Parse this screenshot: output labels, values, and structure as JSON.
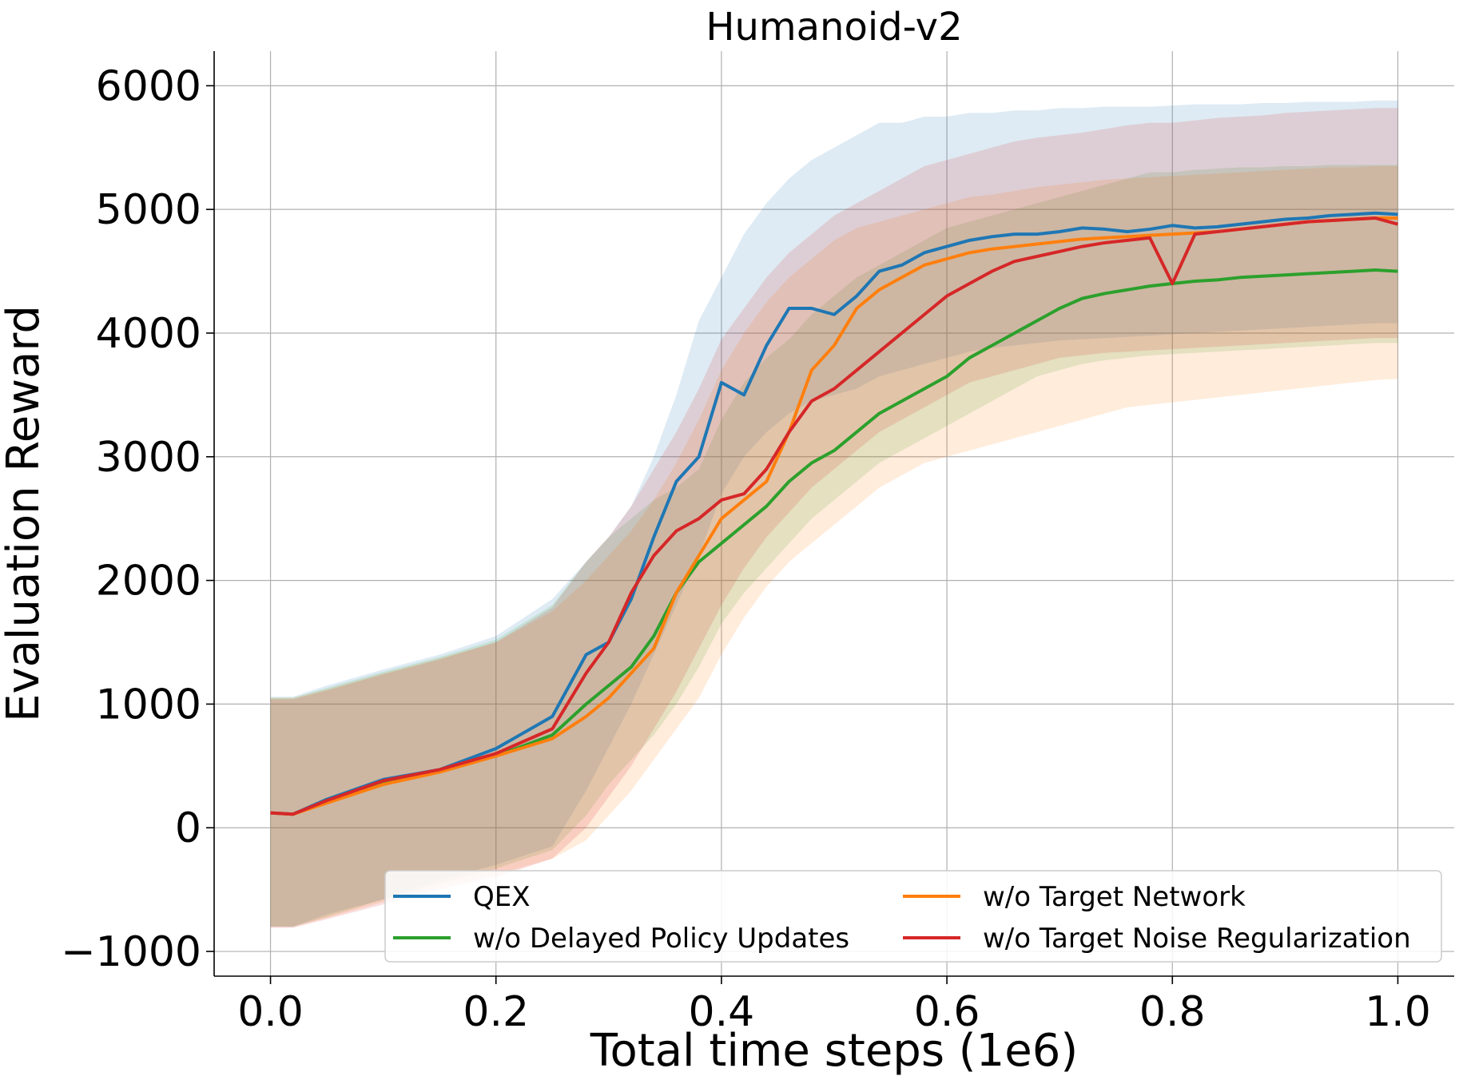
{
  "chart_data": {
    "type": "line",
    "title": "Humanoid-v2",
    "xlabel": "Total time steps (1e6)",
    "ylabel": "Evaluation Reward",
    "xlim": [
      -0.05,
      1.05
    ],
    "ylim": [
      -1200,
      6280
    ],
    "xticks": [
      0.0,
      0.2,
      0.4,
      0.6,
      0.8,
      1.0
    ],
    "xtick_labels": [
      "0.0",
      "0.2",
      "0.4",
      "0.6",
      "0.8",
      "1.0"
    ],
    "yticks": [
      -1000,
      0,
      1000,
      2000,
      3000,
      4000,
      5000,
      6000
    ],
    "ytick_labels": [
      "−1000",
      "0",
      "1000",
      "2000",
      "3000",
      "4000",
      "5000",
      "6000"
    ],
    "grid": true,
    "legend_position": "lower-right",
    "legend_columns": 2,
    "x": [
      0.0,
      0.02,
      0.05,
      0.1,
      0.15,
      0.2,
      0.25,
      0.28,
      0.3,
      0.32,
      0.34,
      0.36,
      0.38,
      0.4,
      0.42,
      0.44,
      0.46,
      0.48,
      0.5,
      0.52,
      0.54,
      0.56,
      0.58,
      0.6,
      0.62,
      0.64,
      0.66,
      0.68,
      0.7,
      0.72,
      0.74,
      0.76,
      0.78,
      0.8,
      0.82,
      0.84,
      0.86,
      0.88,
      0.9,
      0.92,
      0.94,
      0.96,
      0.98,
      1.0
    ],
    "series": [
      {
        "name": "QEX",
        "color": "#1f77b4",
        "values": [
          120,
          110,
          230,
          390,
          470,
          640,
          900,
          1400,
          1500,
          1850,
          2350,
          2800,
          3000,
          3600,
          3500,
          3900,
          4200,
          4200,
          4150,
          4300,
          4500,
          4550,
          4650,
          4700,
          4750,
          4780,
          4800,
          4800,
          4820,
          4850,
          4840,
          4820,
          4840,
          4870,
          4850,
          4860,
          4880,
          4900,
          4920,
          4930,
          4950,
          4960,
          4970,
          4960
        ],
        "upper": [
          1060,
          1060,
          1150,
          1280,
          1400,
          1550,
          1850,
          2150,
          2350,
          2600,
          3000,
          3500,
          4100,
          4450,
          4800,
          5050,
          5250,
          5400,
          5500,
          5600,
          5700,
          5700,
          5750,
          5750,
          5780,
          5780,
          5800,
          5800,
          5820,
          5820,
          5830,
          5830,
          5830,
          5840,
          5850,
          5850,
          5850,
          5860,
          5860,
          5870,
          5870,
          5870,
          5880,
          5880
        ],
        "lower": [
          -800,
          -800,
          -700,
          -580,
          -420,
          -300,
          -150,
          300,
          650,
          1000,
          1400,
          1800,
          2200,
          2700,
          3000,
          3200,
          3350,
          3450,
          3500,
          3550,
          3650,
          3700,
          3750,
          3800,
          3850,
          3880,
          3900,
          3920,
          3940,
          3950,
          3960,
          3970,
          3980,
          3990,
          4000,
          4010,
          4020,
          4030,
          4040,
          4050,
          4060,
          4070,
          4080,
          4080
        ]
      },
      {
        "name": "w/o Delayed Policy Updates",
        "color": "#2ca02c",
        "values": [
          120,
          110,
          210,
          360,
          460,
          580,
          750,
          1000,
          1150,
          1300,
          1550,
          1900,
          2150,
          2300,
          2450,
          2600,
          2800,
          2950,
          3050,
          3200,
          3350,
          3450,
          3550,
          3650,
          3800,
          3900,
          4000,
          4100,
          4200,
          4280,
          4320,
          4350,
          4380,
          4400,
          4420,
          4430,
          4450,
          4460,
          4470,
          4480,
          4490,
          4500,
          4510,
          4500
        ],
        "upper": [
          1050,
          1050,
          1130,
          1260,
          1380,
          1520,
          1800,
          2150,
          2350,
          2500,
          2650,
          2750,
          2900,
          3300,
          3600,
          3800,
          3950,
          4150,
          4300,
          4450,
          4550,
          4650,
          4750,
          4850,
          4900,
          4950,
          5000,
          5050,
          5100,
          5150,
          5200,
          5250,
          5300,
          5300,
          5320,
          5330,
          5340,
          5340,
          5350,
          5350,
          5360,
          5360,
          5360,
          5360
        ],
        "lower": [
          -800,
          -800,
          -720,
          -580,
          -450,
          -330,
          -180,
          100,
          350,
          550,
          750,
          1000,
          1300,
          1650,
          1900,
          2100,
          2300,
          2500,
          2650,
          2800,
          2950,
          3050,
          3150,
          3250,
          3350,
          3450,
          3550,
          3650,
          3700,
          3750,
          3780,
          3800,
          3820,
          3830,
          3840,
          3850,
          3860,
          3870,
          3880,
          3890,
          3900,
          3910,
          3920,
          3920
        ]
      },
      {
        "name": "w/o Target Network",
        "color": "#ff7f0e",
        "values": [
          120,
          110,
          200,
          350,
          450,
          580,
          720,
          900,
          1050,
          1250,
          1450,
          1900,
          2200,
          2500,
          2650,
          2800,
          3200,
          3700,
          3900,
          4200,
          4350,
          4450,
          4550,
          4600,
          4650,
          4680,
          4700,
          4720,
          4740,
          4760,
          4770,
          4780,
          4790,
          4800,
          4810,
          4820,
          4840,
          4860,
          4880,
          4900,
          4910,
          4920,
          4930,
          4930
        ],
        "upper": [
          1050,
          1050,
          1120,
          1250,
          1370,
          1500,
          1750,
          2000,
          2200,
          2400,
          2650,
          2950,
          3300,
          3700,
          4000,
          4250,
          4450,
          4600,
          4750,
          4850,
          4900,
          4950,
          5000,
          5050,
          5100,
          5120,
          5150,
          5180,
          5200,
          5220,
          5240,
          5250,
          5260,
          5270,
          5280,
          5290,
          5300,
          5310,
          5320,
          5330,
          5340,
          5340,
          5350,
          5350
        ],
        "lower": [
          -800,
          -800,
          -730,
          -600,
          -480,
          -380,
          -250,
          -100,
          100,
          300,
          550,
          800,
          1050,
          1400,
          1700,
          1950,
          2150,
          2300,
          2450,
          2600,
          2750,
          2850,
          2950,
          3000,
          3050,
          3100,
          3150,
          3200,
          3250,
          3300,
          3350,
          3400,
          3420,
          3440,
          3460,
          3480,
          3500,
          3520,
          3540,
          3560,
          3580,
          3600,
          3620,
          3630
        ]
      },
      {
        "name": "w/o Target Noise Regularization",
        "color": "#d62728",
        "values": [
          120,
          110,
          220,
          380,
          470,
          600,
          800,
          1250,
          1500,
          1900,
          2200,
          2400,
          2500,
          2650,
          2700,
          2900,
          3200,
          3450,
          3550,
          3700,
          3850,
          4000,
          4150,
          4300,
          4400,
          4500,
          4580,
          4620,
          4660,
          4700,
          4730,
          4750,
          4770,
          4400,
          4800,
          4820,
          4840,
          4860,
          4880,
          4900,
          4910,
          4920,
          4930,
          4880
        ],
        "upper": [
          1040,
          1040,
          1110,
          1240,
          1360,
          1500,
          1780,
          2150,
          2350,
          2600,
          2900,
          3200,
          3550,
          3950,
          4200,
          4450,
          4650,
          4800,
          4950,
          5050,
          5150,
          5250,
          5350,
          5400,
          5450,
          5500,
          5550,
          5580,
          5600,
          5620,
          5650,
          5680,
          5700,
          5700,
          5720,
          5740,
          5750,
          5760,
          5780,
          5790,
          5800,
          5810,
          5820,
          5820
        ],
        "lower": [
          -810,
          -810,
          -740,
          -620,
          -500,
          -400,
          -250,
          0,
          250,
          500,
          800,
          1100,
          1450,
          1800,
          2100,
          2350,
          2550,
          2750,
          2900,
          3050,
          3200,
          3300,
          3400,
          3500,
          3600,
          3650,
          3700,
          3750,
          3800,
          3820,
          3840,
          3850,
          3860,
          3870,
          3880,
          3890,
          3900,
          3910,
          3920,
          3930,
          3940,
          3950,
          3960,
          3960
        ]
      }
    ]
  }
}
